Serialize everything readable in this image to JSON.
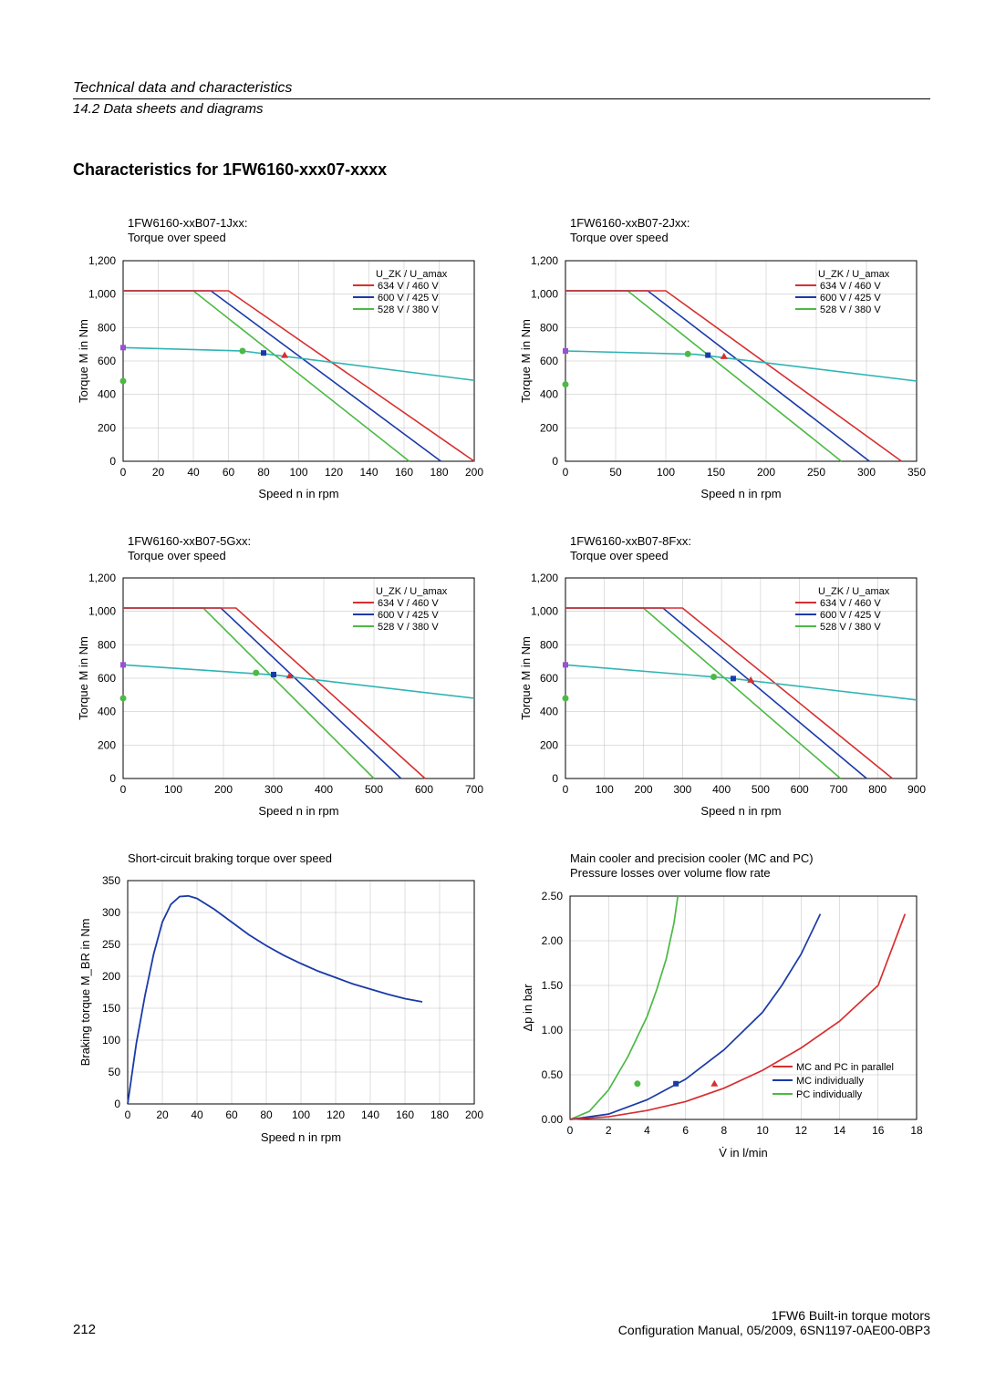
{
  "header": {
    "section": "Technical data and characteristics",
    "subsection": "14.2 Data sheets and diagrams"
  },
  "title": "Characteristics for 1FW6160-xxx07-xxxx",
  "legend_torque": {
    "heading": "U_ZK / U_amax",
    "items": [
      {
        "label": "634 V / 460 V",
        "color": "#d72f2f"
      },
      {
        "label": "600 V / 425 V",
        "color": "#1a3aa8"
      },
      {
        "label": "528 V / 380 V",
        "color": "#4cb944"
      }
    ]
  },
  "legend_pressure": {
    "items": [
      {
        "label": "MC and PC in parallel",
        "color": "#d72f2f"
      },
      {
        "label": "MC individually",
        "color": "#1a3aa8"
      },
      {
        "label": "PC individually",
        "color": "#4cb944"
      }
    ]
  },
  "charts": {
    "c1": {
      "title1": "1FW6160-xxB07-1Jxx:",
      "title2": "Torque over speed",
      "xlabel": "Speed n in rpm",
      "ylabel": "Torque M in Nm",
      "xmin": 0,
      "xmax": 200,
      "xtick": 20,
      "ymin": 0,
      "ymax": 1200,
      "ytick": 200,
      "red": [
        [
          0,
          1020
        ],
        [
          60,
          1020
        ],
        [
          200,
          0
        ]
      ],
      "blue": [
        [
          0,
          1020
        ],
        [
          50,
          1020
        ],
        [
          181,
          0
        ]
      ],
      "green": [
        [
          0,
          1020
        ],
        [
          40,
          1020
        ],
        [
          163,
          0
        ]
      ],
      "red_m": [
        [
          0,
          680
        ],
        [
          68,
          660
        ],
        [
          200,
          484
        ]
      ],
      "blue_m": [
        [
          68,
          660
        ]
      ],
      "green_m": [
        [
          0,
          480
        ]
      ],
      "marker_red": [
        [
          92,
          635
        ]
      ],
      "marker_blue": [
        [
          80,
          648
        ]
      ],
      "marker_green": [
        [
          68,
          660
        ]
      ]
    },
    "c2": {
      "title1": "1FW6160-xxB07-2Jxx:",
      "title2": "Torque over speed",
      "xlabel": "Speed n in rpm",
      "ylabel": "Torque M in Nm",
      "xmin": 0,
      "xmax": 350,
      "xtick": 50,
      "ymin": 0,
      "ymax": 1200,
      "ytick": 200,
      "red": [
        [
          0,
          1020
        ],
        [
          100,
          1020
        ],
        [
          335,
          0
        ]
      ],
      "blue": [
        [
          0,
          1020
        ],
        [
          82,
          1020
        ],
        [
          303,
          0
        ]
      ],
      "green": [
        [
          0,
          1020
        ],
        [
          62,
          1020
        ],
        [
          275,
          0
        ]
      ],
      "red_m": [
        [
          0,
          660
        ],
        [
          130,
          640
        ],
        [
          350,
          480
        ]
      ],
      "marker_red": [
        [
          158,
          628
        ]
      ],
      "marker_blue": [
        [
          142,
          635
        ]
      ],
      "marker_green": [
        [
          122,
          642
        ]
      ]
    },
    "c3": {
      "title1": "1FW6160-xxB07-5Gxx:",
      "title2": "Torque over speed",
      "xlabel": "Speed n in rpm",
      "ylabel": "Torque M in Nm",
      "xmin": 0,
      "xmax": 700,
      "xtick": 100,
      "ymin": 0,
      "ymax": 1200,
      "ytick": 200,
      "red": [
        [
          0,
          1020
        ],
        [
          225,
          1020
        ],
        [
          602,
          0
        ]
      ],
      "blue": [
        [
          0,
          1020
        ],
        [
          195,
          1020
        ],
        [
          554,
          0
        ]
      ],
      "green": [
        [
          0,
          1020
        ],
        [
          160,
          1020
        ],
        [
          500,
          0
        ]
      ],
      "red_m": [
        [
          0,
          680
        ],
        [
          300,
          620
        ],
        [
          700,
          480
        ]
      ],
      "marker_red": [
        [
          332,
          615
        ]
      ],
      "marker_blue": [
        [
          300,
          622
        ]
      ],
      "marker_green": [
        [
          265,
          632
        ]
      ]
    },
    "c4": {
      "title1": "1FW6160-xxB07-8Fxx:",
      "title2": "Torque over speed",
      "xlabel": "Speed n in rpm",
      "ylabel": "Torque M in Nm",
      "xmin": 0,
      "xmax": 900,
      "xtick": 100,
      "ymin": 0,
      "ymax": 1200,
      "ytick": 200,
      "red": [
        [
          0,
          1020
        ],
        [
          300,
          1020
        ],
        [
          838,
          0
        ]
      ],
      "blue": [
        [
          0,
          1020
        ],
        [
          250,
          1020
        ],
        [
          772,
          0
        ]
      ],
      "green": [
        [
          0,
          1020
        ],
        [
          200,
          1020
        ],
        [
          705,
          0
        ]
      ],
      "red_m": [
        [
          0,
          680
        ],
        [
          420,
          600
        ],
        [
          900,
          470
        ]
      ],
      "marker_red": [
        [
          475,
          590
        ]
      ],
      "marker_blue": [
        [
          430,
          598
        ]
      ],
      "marker_green": [
        [
          380,
          608
        ]
      ]
    },
    "c5": {
      "title": "Short-circuit braking torque over speed",
      "xlabel": "Speed n in rpm",
      "ylabel": "Braking torque M_BR in Nm",
      "xmin": 0,
      "xmax": 200,
      "xtick": 20,
      "ymin": 0,
      "ymax": 350,
      "ytick": 50,
      "line": [
        [
          0,
          0
        ],
        [
          5,
          95
        ],
        [
          10,
          170
        ],
        [
          15,
          235
        ],
        [
          20,
          285
        ],
        [
          25,
          313
        ],
        [
          30,
          325
        ],
        [
          35,
          326
        ],
        [
          40,
          322
        ],
        [
          50,
          305
        ],
        [
          60,
          285
        ],
        [
          70,
          265
        ],
        [
          80,
          248
        ],
        [
          90,
          233
        ],
        [
          100,
          220
        ],
        [
          110,
          208
        ],
        [
          120,
          198
        ],
        [
          130,
          188
        ],
        [
          140,
          180
        ],
        [
          150,
          172
        ],
        [
          160,
          165
        ],
        [
          170,
          160
        ]
      ]
    },
    "c6": {
      "title1": "Main cooler and precision cooler (MC and PC)",
      "title2": "Pressure losses over volume flow rate",
      "xlabel": "V̇ in l/min",
      "ylabel": "Δp in bar",
      "xmin": 0,
      "xmax": 18,
      "xtick": 2,
      "ymin": 0,
      "ymax": 2.5,
      "ytick": 0.5,
      "red": [
        [
          0,
          0
        ],
        [
          2,
          0.03
        ],
        [
          4,
          0.1
        ],
        [
          6,
          0.2
        ],
        [
          8,
          0.35
        ],
        [
          10,
          0.55
        ],
        [
          12,
          0.8
        ],
        [
          14,
          1.1
        ],
        [
          16,
          1.5
        ],
        [
          17.4,
          2.3
        ]
      ],
      "blue": [
        [
          0,
          0
        ],
        [
          2,
          0.06
        ],
        [
          4,
          0.22
        ],
        [
          6,
          0.45
        ],
        [
          8,
          0.78
        ],
        [
          10,
          1.2
        ],
        [
          11,
          1.5
        ],
        [
          12,
          1.85
        ],
        [
          13,
          2.3
        ]
      ],
      "green": [
        [
          0,
          0
        ],
        [
          1,
          0.09
        ],
        [
          2,
          0.33
        ],
        [
          3,
          0.7
        ],
        [
          4,
          1.15
        ],
        [
          4.5,
          1.45
        ],
        [
          5,
          1.8
        ],
        [
          5.4,
          2.2
        ],
        [
          5.6,
          2.5
        ]
      ],
      "marker_red": [
        [
          7.5,
          0.4
        ]
      ],
      "marker_blue": [
        [
          5.5,
          0.4
        ]
      ],
      "marker_green": [
        [
          3.5,
          0.4
        ]
      ]
    }
  },
  "footer": {
    "line1": "1FW6 Built-in torque motors",
    "line2": "Configuration Manual, 05/2009, 6SN1197-0AE00-0BP3",
    "page": "212"
  }
}
